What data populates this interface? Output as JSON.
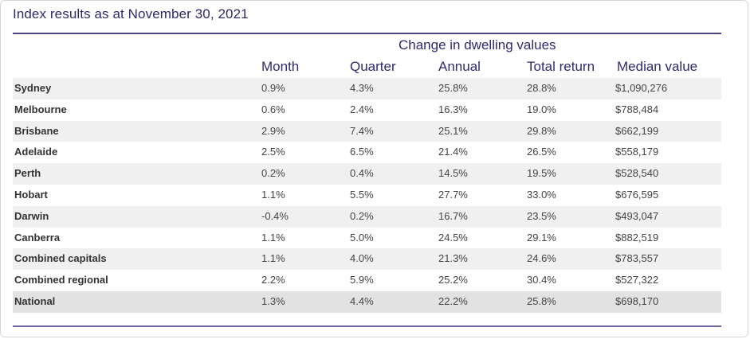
{
  "title": "Index results as at November 30, 2021",
  "group_header": "Change in dwelling values",
  "columns": {
    "month": "Month",
    "quarter": "Quarter",
    "annual": "Annual",
    "total": "Total return",
    "median": "Median value"
  },
  "rows": [
    {
      "name": "Sydney",
      "month": "0.9%",
      "quarter": "4.3%",
      "annual": "25.8%",
      "total": "28.8%",
      "median": "$1,090,276"
    },
    {
      "name": "Melbourne",
      "month": "0.6%",
      "quarter": "2.4%",
      "annual": "16.3%",
      "total": "19.0%",
      "median": "$788,484"
    },
    {
      "name": "Brisbane",
      "month": "2.9%",
      "quarter": "7.4%",
      "annual": "25.1%",
      "total": "29.8%",
      "median": "$662,199"
    },
    {
      "name": "Adelaide",
      "month": "2.5%",
      "quarter": "6.5%",
      "annual": "21.4%",
      "total": "26.5%",
      "median": "$558,179"
    },
    {
      "name": "Perth",
      "month": "0.2%",
      "quarter": "0.4%",
      "annual": "14.5%",
      "total": "19.5%",
      "median": "$528,540"
    },
    {
      "name": "Hobart",
      "month": "1.1%",
      "quarter": "5.5%",
      "annual": "27.7%",
      "total": "33.0%",
      "median": "$676,595"
    },
    {
      "name": "Darwin",
      "month": "-0.4%",
      "quarter": "0.2%",
      "annual": "16.7%",
      "total": "23.5%",
      "median": "$493,047"
    },
    {
      "name": "Canberra",
      "month": "1.1%",
      "quarter": "5.0%",
      "annual": "24.5%",
      "total": "29.1%",
      "median": "$882,519"
    },
    {
      "name": "Combined capitals",
      "month": "1.1%",
      "quarter": "4.0%",
      "annual": "21.3%",
      "total": "24.6%",
      "median": "$783,557"
    },
    {
      "name": "Combined regional",
      "month": "2.2%",
      "quarter": "5.9%",
      "annual": "25.2%",
      "total": "30.4%",
      "median": "$527,322"
    },
    {
      "name": "National",
      "month": "1.3%",
      "quarter": "4.4%",
      "annual": "22.2%",
      "total": "25.8%",
      "median": "$698,170"
    }
  ]
}
